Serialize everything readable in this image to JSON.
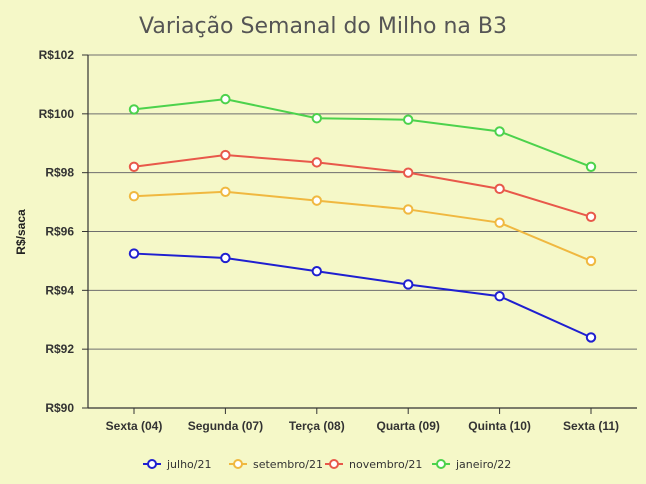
{
  "chart_data": {
    "type": "line",
    "title": "Variação Semanal do Milho na B3",
    "xlabel": "",
    "ylabel": "R$/saca",
    "categories": [
      "Sexta (04)",
      "Segunda (07)",
      "Terça (08)",
      "Quarta (09)",
      "Quinta (10)",
      "Sexta (11)"
    ],
    "ylim": [
      90,
      102
    ],
    "yticks": [
      90,
      92,
      94,
      96,
      98,
      100,
      102
    ],
    "ytick_labels": [
      "R$90",
      "R$92",
      "R$94",
      "R$96",
      "R$98",
      "R$100",
      "R$102"
    ],
    "grid": "horizontal",
    "legend_position": "bottom",
    "series": [
      {
        "name": "julho/21",
        "color": "#1f1fd0",
        "values": [
          95.25,
          95.1,
          94.65,
          94.2,
          93.8,
          92.4
        ]
      },
      {
        "name": "setembro/21",
        "color": "#f0b840",
        "values": [
          97.2,
          97.35,
          97.05,
          96.75,
          96.3,
          95.0
        ]
      },
      {
        "name": "novembro/21",
        "color": "#e8584a",
        "values": [
          98.2,
          98.6,
          98.35,
          98.0,
          97.45,
          96.5
        ]
      },
      {
        "name": "janeiro/22",
        "color": "#4cd24c",
        "values": [
          100.15,
          100.5,
          99.85,
          99.8,
          99.4,
          98.2
        ]
      }
    ]
  }
}
